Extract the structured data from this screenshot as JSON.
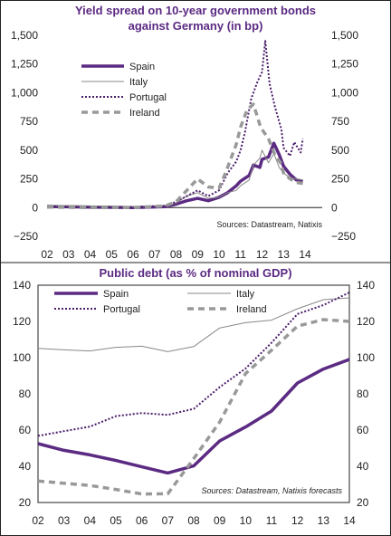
{
  "chart_data": [
    {
      "type": "line",
      "title_line1": "Yield spread on 10-year government bonds",
      "title_line2": "against Germany (in bp)",
      "ylim": [
        -250,
        1500
      ],
      "yticks": [
        "1,500",
        "1,250",
        "1,000",
        "750",
        "500",
        "250",
        "0",
        "−250"
      ],
      "yticks_right": [
        "1,500",
        "1,250",
        "1,000",
        "750",
        "500",
        "250",
        "0",
        "−250"
      ],
      "xticks": [
        "02",
        "03",
        "04",
        "05",
        "06",
        "07",
        "08",
        "09",
        "10",
        "11",
        "12",
        "13",
        "14"
      ],
      "xlim": [
        2002,
        2014.8
      ],
      "source": "Sources: Datastream, Natixis",
      "grid": false,
      "legend_position": "top-left",
      "series": [
        {
          "name": "Spain",
          "color": "#5b2a82",
          "style": "solid-thick",
          "x": [
            2002,
            2004,
            2006,
            2007.5,
            2008,
            2008.5,
            2009,
            2009.5,
            2010,
            2010.4,
            2010.8,
            2011,
            2011.4,
            2011.6,
            2011.9,
            2012,
            2012.3,
            2012.55,
            2012.8,
            2013,
            2013.3,
            2013.6,
            2013.9
          ],
          "y": [
            10,
            5,
            0,
            8,
            30,
            60,
            80,
            60,
            90,
            130,
            190,
            230,
            280,
            370,
            350,
            420,
            440,
            560,
            460,
            360,
            290,
            240,
            230
          ]
        },
        {
          "name": "Italy",
          "color": "#888888",
          "style": "solid-thin",
          "x": [
            2002,
            2004,
            2006,
            2007.5,
            2008,
            2008.5,
            2009,
            2009.5,
            2010,
            2010.4,
            2010.8,
            2011,
            2011.4,
            2011.6,
            2011.9,
            2012,
            2012.3,
            2012.55,
            2012.8,
            2013,
            2013.3,
            2013.6,
            2013.9
          ],
          "y": [
            20,
            15,
            10,
            15,
            40,
            100,
            130,
            80,
            90,
            130,
            150,
            190,
            240,
            370,
            430,
            500,
            390,
            470,
            350,
            300,
            260,
            250,
            240
          ]
        },
        {
          "name": "Portugal",
          "color": "#4a1e6a",
          "style": "dotted",
          "x": [
            2002,
            2004,
            2006,
            2007.5,
            2008,
            2008.5,
            2009,
            2009.5,
            2010,
            2010.4,
            2010.8,
            2011,
            2011.2,
            2011.5,
            2011.8,
            2012,
            2012.15,
            2012.35,
            2012.6,
            2012.9,
            2013,
            2013.3,
            2013.5,
            2013.8,
            2013.9
          ],
          "y": [
            10,
            5,
            5,
            15,
            50,
            100,
            150,
            100,
            150,
            300,
            400,
            500,
            650,
            950,
            1100,
            1180,
            1450,
            1080,
            880,
            680,
            520,
            450,
            570,
            480,
            600
          ]
        },
        {
          "name": "Ireland",
          "color": "#999999",
          "style": "dashed-thick",
          "x": [
            2002,
            2004,
            2006,
            2007.5,
            2008,
            2008.5,
            2009,
            2009.5,
            2010,
            2010.3,
            2010.8,
            2011,
            2011.3,
            2011.6,
            2011.9,
            2012,
            2012.3,
            2012.6,
            2012.9,
            2013,
            2013.3,
            2013.6,
            2013.9
          ],
          "y": [
            5,
            0,
            0,
            15,
            50,
            150,
            250,
            180,
            170,
            300,
            550,
            700,
            850,
            900,
            720,
            680,
            600,
            460,
            380,
            300,
            250,
            220,
            210
          ]
        }
      ]
    },
    {
      "type": "line",
      "title": "Public debt (as % of nominal GDP)",
      "ylim": [
        20,
        140
      ],
      "yticks": [
        "140",
        "120",
        "100",
        "80",
        "60",
        "40",
        "20"
      ],
      "yticks_right": [
        "140",
        "120",
        "100",
        "80",
        "60",
        "40",
        "20"
      ],
      "xticks": [
        "02",
        "03",
        "04",
        "05",
        "06",
        "07",
        "08",
        "09",
        "10",
        "11",
        "12",
        "13",
        "14"
      ],
      "x": [
        2002,
        2003,
        2004,
        2005,
        2006,
        2007,
        2008,
        2009,
        2010,
        2011,
        2012,
        2013,
        2014
      ],
      "source": "Sources: Datastream, Natixis forecasts",
      "grid": false,
      "legend_position": "top",
      "series": [
        {
          "name": "Spain",
          "color": "#5b2a82",
          "style": "solid-thick",
          "values": [
            52.5,
            48.8,
            46.3,
            43.2,
            39.7,
            36.3,
            40.2,
            54.0,
            61.7,
            70.5,
            86.0,
            93.7,
            99.0
          ]
        },
        {
          "name": "Italy",
          "color": "#888888",
          "style": "solid-thin",
          "values": [
            105.1,
            104.3,
            103.7,
            105.7,
            106.3,
            103.3,
            106.1,
            116.4,
            119.3,
            120.7,
            127.0,
            132.0,
            133.0
          ]
        },
        {
          "name": "Portugal",
          "color": "#4a1e6a",
          "style": "dotted",
          "values": [
            56.8,
            59.4,
            61.9,
            67.7,
            69.4,
            68.4,
            71.7,
            83.7,
            94.0,
            108.2,
            124.1,
            129.0,
            136.0
          ]
        },
        {
          "name": "Ireland",
          "color": "#999999",
          "style": "dashed-thick",
          "values": [
            31.9,
            30.6,
            29.4,
            27.2,
            24.7,
            24.8,
            44.2,
            64.4,
            91.2,
            104.1,
            117.4,
            121.0,
            120.0
          ]
        }
      ]
    }
  ]
}
